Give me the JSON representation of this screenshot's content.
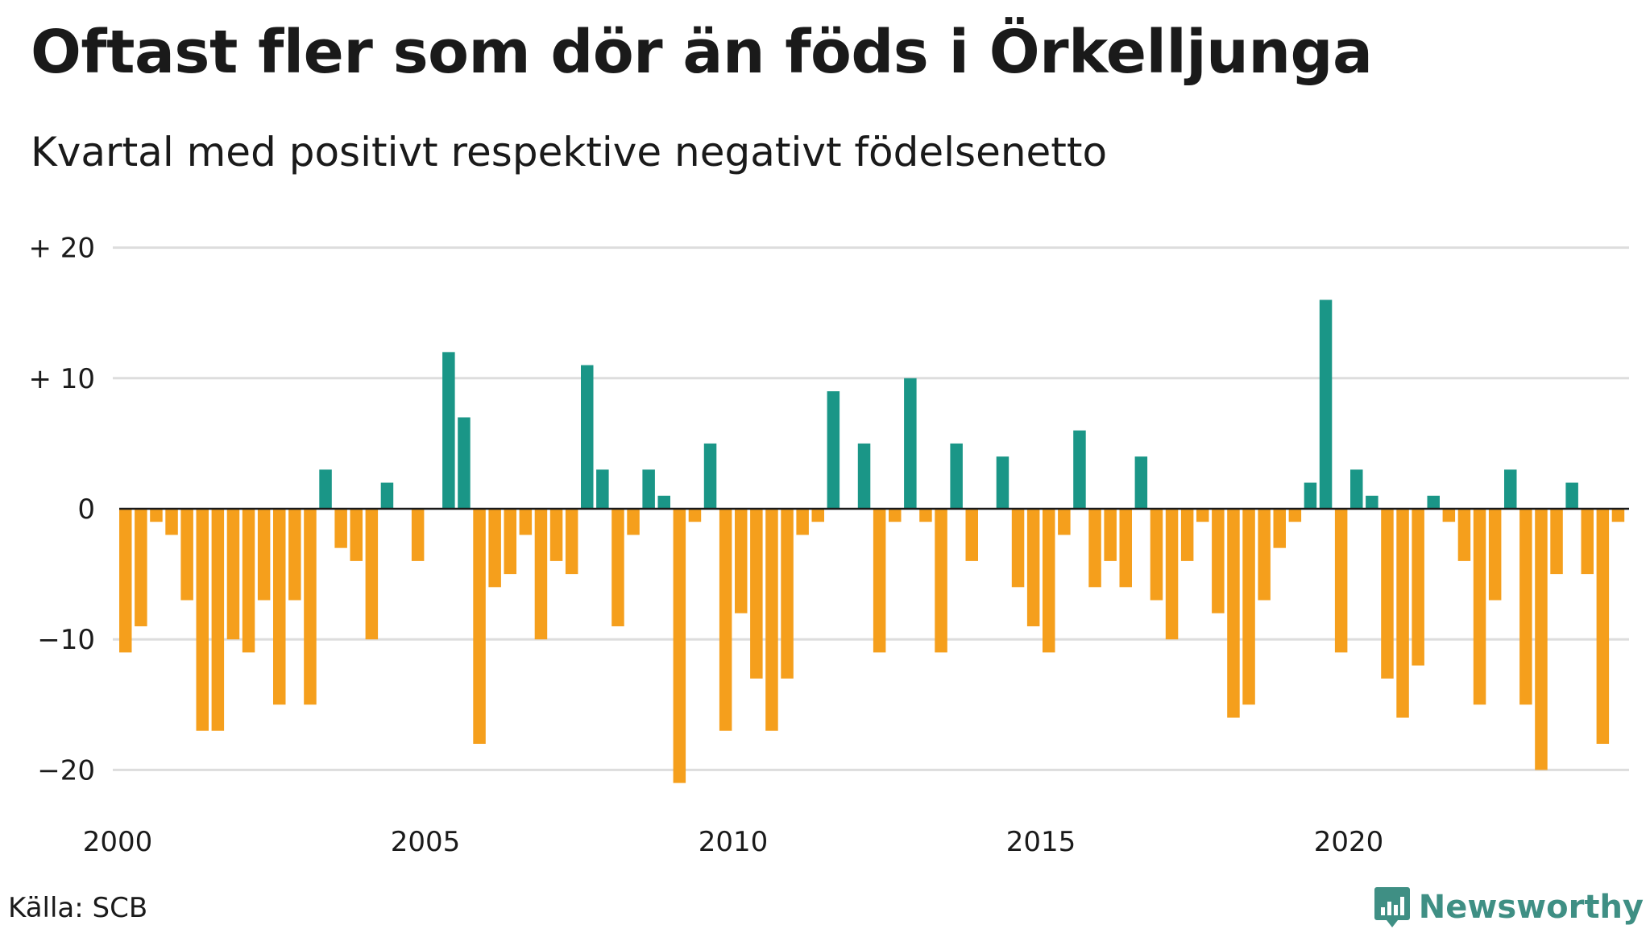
{
  "title": "Oftast fler som dör än föds i Örkelljunga",
  "subtitle": "Kvartal med positivt respektive negativt födelsenetto",
  "source": "Källa: SCB",
  "brand": {
    "name": "Newsworthy",
    "icon": "newsworthy-logo-icon"
  },
  "colors": {
    "positive": "#1a9687",
    "negative": "#f59f1c",
    "grid": "#dddddd",
    "zero": "#1a1a1a"
  },
  "chart_data": {
    "type": "bar",
    "ylim": [
      -23,
      22
    ],
    "yticks": [
      20,
      10,
      0,
      -10,
      -20
    ],
    "ytick_labels": [
      "+ 20",
      "+ 10",
      "0",
      "−10",
      "−20"
    ],
    "xticks": [
      2000,
      2005,
      2010,
      2015,
      2020
    ],
    "xtick_labels": [
      "2000",
      "2005",
      "2010",
      "2015",
      "2020"
    ],
    "x_start": 2000,
    "periods_per_year": 4,
    "grid": true,
    "legend": "none",
    "values": [
      -11,
      -9,
      -1,
      -2,
      -7,
      -17,
      -17,
      -10,
      -11,
      -7,
      -15,
      -7,
      -15,
      3,
      -3,
      -4,
      -10,
      2,
      0,
      -4,
      0,
      12,
      7,
      -18,
      -6,
      -5,
      -2,
      -10,
      -4,
      -5,
      11,
      3,
      -9,
      -2,
      3,
      1,
      -21,
      -1,
      5,
      -17,
      -8,
      -13,
      -17,
      -13,
      -2,
      -1,
      9,
      0,
      5,
      -11,
      -1,
      10,
      -1,
      -11,
      5,
      -4,
      0,
      4,
      -6,
      -9,
      -11,
      -2,
      6,
      -6,
      -4,
      -6,
      4,
      -7,
      -10,
      -4,
      -1,
      -8,
      -16,
      -15,
      -7,
      -3,
      -1,
      2,
      16,
      -11,
      3,
      1,
      -13,
      -16,
      -12,
      1,
      -1,
      -4,
      -15,
      -7,
      3,
      -15,
      -20,
      -5,
      2,
      -5,
      -18,
      -1
    ]
  }
}
